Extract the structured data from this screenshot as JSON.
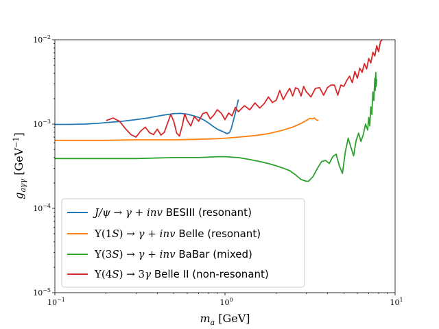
{
  "chart_data": {
    "type": "line",
    "xscale": "log",
    "yscale": "log",
    "xlim": [
      0.1,
      10
    ],
    "ylim": [
      1e-05,
      0.01
    ],
    "xlabel": "m_a [GeV]",
    "ylabel": "g_aγγ [GeV^-1]",
    "x_ticks": [
      {
        "value": 0.1,
        "base": "10",
        "exp": "−1"
      },
      {
        "value": 1,
        "base": "10",
        "exp": "0"
      },
      {
        "value": 10,
        "base": "10",
        "exp": "1"
      }
    ],
    "y_ticks": [
      {
        "value": 1e-05,
        "base": "10",
        "exp": "−5"
      },
      {
        "value": 0.0001,
        "base": "10",
        "exp": "−4"
      },
      {
        "value": 0.001,
        "base": "10",
        "exp": "−3"
      },
      {
        "value": 0.01,
        "base": "10",
        "exp": "−2"
      }
    ],
    "grid": false,
    "legend_position": "lower-left",
    "series": [
      {
        "name": "J/ψ → γ + inv BESIII (resonant)",
        "color": "#1f77b4",
        "points": [
          [
            0.1,
            0.00099
          ],
          [
            0.12,
            0.00099
          ],
          [
            0.15,
            0.001
          ],
          [
            0.18,
            0.00102
          ],
          [
            0.2,
            0.00104
          ],
          [
            0.25,
            0.00108
          ],
          [
            0.3,
            0.00113
          ],
          [
            0.35,
            0.00118
          ],
          [
            0.4,
            0.00124
          ],
          [
            0.45,
            0.00129
          ],
          [
            0.5,
            0.00133
          ],
          [
            0.55,
            0.00134
          ],
          [
            0.6,
            0.00131
          ],
          [
            0.65,
            0.00126
          ],
          [
            0.7,
            0.0012
          ],
          [
            0.75,
            0.00112
          ],
          [
            0.8,
            0.00103
          ],
          [
            0.85,
            0.00094
          ],
          [
            0.9,
            0.00087
          ],
          [
            0.95,
            0.00083
          ],
          [
            1.0,
            0.00079
          ],
          [
            1.03,
            0.00077
          ],
          [
            1.06,
            0.00079
          ],
          [
            1.09,
            0.00089
          ],
          [
            1.12,
            0.0011
          ],
          [
            1.15,
            0.00135
          ],
          [
            1.18,
            0.0017
          ],
          [
            1.2,
            0.00195
          ]
        ]
      },
      {
        "name": "Υ(1S) → γ + inv Belle (resonant)",
        "color": "#ff7f0e",
        "points": [
          [
            0.1,
            0.00064
          ],
          [
            0.2,
            0.00064
          ],
          [
            0.3,
            0.00065
          ],
          [
            0.4,
            0.00065
          ],
          [
            0.5,
            0.00065
          ],
          [
            0.7,
            0.00066
          ],
          [
            0.9,
            0.00067
          ],
          [
            1.0,
            0.00068
          ],
          [
            1.2,
            0.0007
          ],
          [
            1.5,
            0.00073
          ],
          [
            1.8,
            0.00077
          ],
          [
            2.0,
            0.00081
          ],
          [
            2.2,
            0.00085
          ],
          [
            2.5,
            0.00092
          ],
          [
            2.8,
            0.00102
          ],
          [
            3.0,
            0.0011
          ],
          [
            3.15,
            0.00117
          ],
          [
            3.25,
            0.00115
          ],
          [
            3.35,
            0.00118
          ],
          [
            3.45,
            0.00112
          ],
          [
            3.55,
            0.0011
          ]
        ]
      },
      {
        "name": "Υ(3S) → γ + inv BaBar (mixed)",
        "color": "#2ca02c",
        "points": [
          [
            0.1,
            0.00039
          ],
          [
            0.2,
            0.00039
          ],
          [
            0.3,
            0.00039
          ],
          [
            0.5,
            0.0004
          ],
          [
            0.7,
            0.0004
          ],
          [
            0.9,
            0.00041
          ],
          [
            1.0,
            0.00041
          ],
          [
            1.2,
            0.0004
          ],
          [
            1.4,
            0.00038
          ],
          [
            1.6,
            0.00036
          ],
          [
            1.8,
            0.00034
          ],
          [
            2.0,
            0.00032
          ],
          [
            2.2,
            0.0003
          ],
          [
            2.4,
            0.00028
          ],
          [
            2.6,
            0.00025
          ],
          [
            2.8,
            0.00022
          ],
          [
            3.0,
            0.00021
          ],
          [
            3.1,
            0.00021
          ],
          [
            3.3,
            0.00024
          ],
          [
            3.5,
            0.0003
          ],
          [
            3.7,
            0.00036
          ],
          [
            3.9,
            0.00037
          ],
          [
            4.1,
            0.00034
          ],
          [
            4.3,
            0.00041
          ],
          [
            4.5,
            0.00044
          ],
          [
            4.7,
            0.00032
          ],
          [
            4.9,
            0.00026
          ],
          [
            5.1,
            0.00047
          ],
          [
            5.3,
            0.00068
          ],
          [
            5.5,
            0.00053
          ],
          [
            5.7,
            0.00042
          ],
          [
            5.9,
            0.00064
          ],
          [
            6.1,
            0.00078
          ],
          [
            6.3,
            0.00062
          ],
          [
            6.5,
            0.00075
          ],
          [
            6.7,
            0.001
          ],
          [
            6.9,
            0.00085
          ],
          [
            7.0,
            0.0012
          ],
          [
            7.1,
            0.00095
          ],
          [
            7.2,
            0.0016
          ],
          [
            7.3,
            0.0013
          ],
          [
            7.4,
            0.0024
          ],
          [
            7.5,
            0.0019
          ],
          [
            7.6,
            0.0035
          ],
          [
            7.65,
            0.0025
          ],
          [
            7.7,
            0.0041
          ],
          [
            7.75,
            0.0028
          ],
          [
            7.8,
            0.0034
          ]
        ]
      },
      {
        "name": "Υ(4S) → 3γ Belle II (non-resonant)",
        "color": "#d62728",
        "points": [
          [
            0.2,
            0.0011
          ],
          [
            0.22,
            0.00118
          ],
          [
            0.24,
            0.00108
          ],
          [
            0.26,
            0.00088
          ],
          [
            0.28,
            0.00075
          ],
          [
            0.3,
            0.0007
          ],
          [
            0.32,
            0.00083
          ],
          [
            0.34,
            0.00092
          ],
          [
            0.36,
            0.00079
          ],
          [
            0.38,
            0.00075
          ],
          [
            0.4,
            0.00087
          ],
          [
            0.42,
            0.00074
          ],
          [
            0.44,
            0.0008
          ],
          [
            0.46,
            0.00103
          ],
          [
            0.48,
            0.0013
          ],
          [
            0.5,
            0.00108
          ],
          [
            0.52,
            0.00078
          ],
          [
            0.54,
            0.00072
          ],
          [
            0.56,
            0.00095
          ],
          [
            0.58,
            0.00132
          ],
          [
            0.6,
            0.0011
          ],
          [
            0.63,
            0.00095
          ],
          [
            0.66,
            0.00123
          ],
          [
            0.7,
            0.00108
          ],
          [
            0.74,
            0.00133
          ],
          [
            0.78,
            0.00138
          ],
          [
            0.82,
            0.00115
          ],
          [
            0.86,
            0.00128
          ],
          [
            0.9,
            0.00148
          ],
          [
            0.95,
            0.00135
          ],
          [
            1.0,
            0.00113
          ],
          [
            1.05,
            0.00135
          ],
          [
            1.1,
            0.00125
          ],
          [
            1.15,
            0.00158
          ],
          [
            1.2,
            0.0014
          ],
          [
            1.3,
            0.00165
          ],
          [
            1.4,
            0.00148
          ],
          [
            1.5,
            0.00178
          ],
          [
            1.6,
            0.00155
          ],
          [
            1.7,
            0.00175
          ],
          [
            1.8,
            0.0021
          ],
          [
            1.9,
            0.0018
          ],
          [
            2.0,
            0.00192
          ],
          [
            2.1,
            0.0025
          ],
          [
            2.2,
            0.00195
          ],
          [
            2.3,
            0.0023
          ],
          [
            2.4,
            0.00265
          ],
          [
            2.5,
            0.00215
          ],
          [
            2.6,
            0.0027
          ],
          [
            2.7,
            0.0026
          ],
          [
            2.8,
            0.00215
          ],
          [
            2.9,
            0.0028
          ],
          [
            3.0,
            0.00243
          ],
          [
            3.2,
            0.0021
          ],
          [
            3.4,
            0.00265
          ],
          [
            3.6,
            0.0027
          ],
          [
            3.8,
            0.0022
          ],
          [
            4.0,
            0.0027
          ],
          [
            4.2,
            0.0029
          ],
          [
            4.4,
            0.0029
          ],
          [
            4.6,
            0.0022
          ],
          [
            4.8,
            0.0029
          ],
          [
            5.0,
            0.0028
          ],
          [
            5.2,
            0.0033
          ],
          [
            5.4,
            0.0037
          ],
          [
            5.6,
            0.0031
          ],
          [
            5.8,
            0.0042
          ],
          [
            6.0,
            0.0035
          ],
          [
            6.2,
            0.0046
          ],
          [
            6.4,
            0.0041
          ],
          [
            6.6,
            0.0052
          ],
          [
            6.8,
            0.0045
          ],
          [
            7.0,
            0.006
          ],
          [
            7.2,
            0.0053
          ],
          [
            7.4,
            0.0071
          ],
          [
            7.6,
            0.0064
          ],
          [
            7.8,
            0.0085
          ],
          [
            8.0,
            0.0072
          ],
          [
            8.2,
            0.0095
          ],
          [
            8.4,
            0.01
          ]
        ]
      }
    ]
  }
}
